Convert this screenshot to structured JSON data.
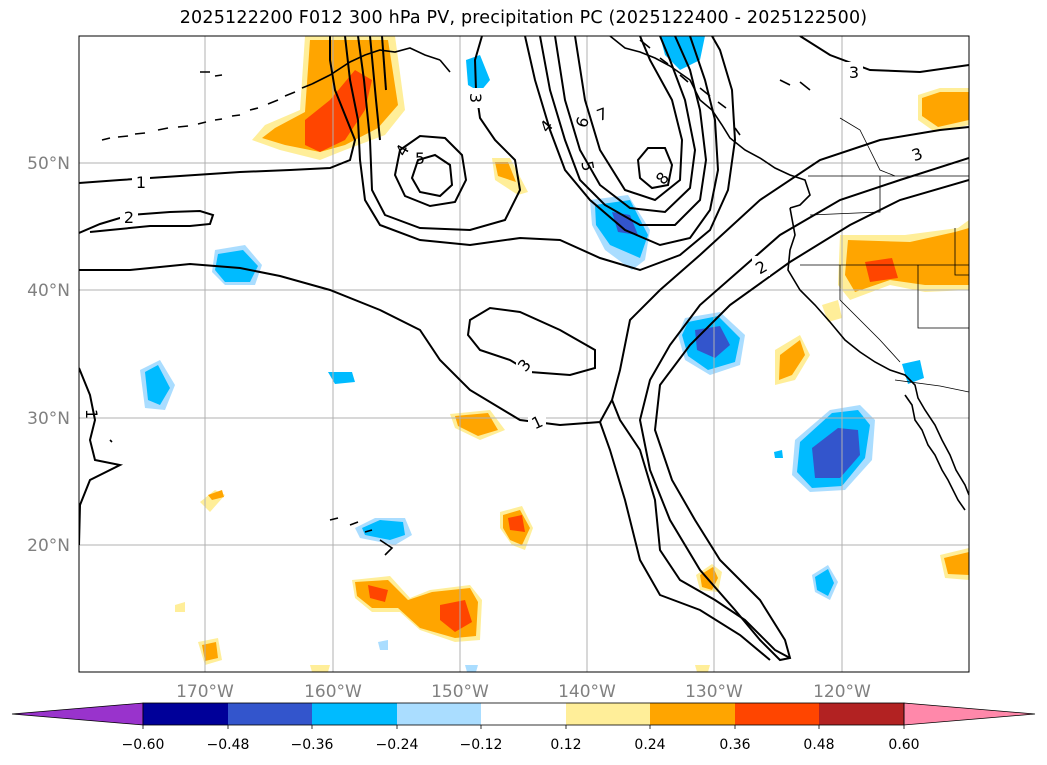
{
  "title": "2025122200 F012 300 hPa PV, precipitation PC (2025122400 - 2025122500)",
  "lat_ticks": [
    "50°N",
    "40°N",
    "30°N",
    "20°N"
  ],
  "lon_ticks": [
    "170°W",
    "160°W",
    "150°W",
    "140°W",
    "130°W",
    "120°W"
  ],
  "colorbar": {
    "tick_labels": [
      "−0.60",
      "−0.48",
      "−0.36",
      "−0.24",
      "−0.12",
      "0.12",
      "0.24",
      "0.36",
      "0.48",
      "0.60"
    ],
    "colors": [
      "#9933cc",
      "#000099",
      "#3355cc",
      "#00bbff",
      "#aaddff",
      "#ffffff",
      "#ffee99",
      "#ffa500",
      "#ff4500",
      "#b22222",
      "#ff88aa"
    ]
  },
  "contour_labels": [
    "1",
    "2",
    "3",
    "4",
    "5",
    "6",
    "7",
    "8"
  ],
  "colors": {
    "orange": "#ffa500",
    "red_orange": "#ff4500",
    "light_yellow": "#ffee99",
    "cyan": "#00bbff",
    "light_blue": "#aaddff",
    "royal_blue": "#3355cc",
    "grid": "#b0b0b0",
    "contour": "#000000"
  }
}
